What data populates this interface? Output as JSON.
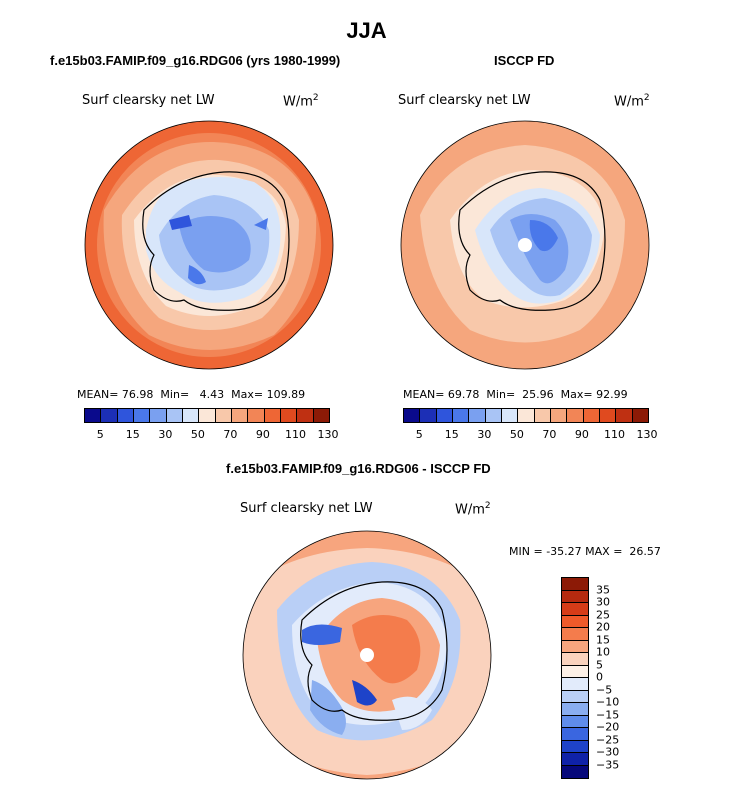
{
  "title": "JJA",
  "panels": [
    {
      "title": "f.e15b03.FAMIP.f09_g16.RDG06 (yrs 1980-1999)",
      "variable": "Surf clearsky net LW",
      "units": "W/m",
      "units_sup": "2",
      "mean_label": "MEAN=",
      "mean": "76.98",
      "min_label": "Min=",
      "min": "4.43",
      "max_label": "Max=",
      "max": "109.89",
      "cbar_ticks": [
        "5",
        "15",
        "30",
        "50",
        "70",
        "90",
        "110",
        "130"
      ]
    },
    {
      "title": "ISCCP FD",
      "variable": "Surf clearsky net LW",
      "units": "W/m",
      "units_sup": "2",
      "mean_label": "MEAN=",
      "mean": "69.78",
      "min_label": "Min=",
      "min": "25.96",
      "max_label": "Max=",
      "max": "92.99",
      "cbar_ticks": [
        "5",
        "15",
        "30",
        "50",
        "70",
        "90",
        "110",
        "130"
      ]
    },
    {
      "title": "f.e15b03.FAMIP.f09_g16.RDG06 - ISCCP FD",
      "variable": "Surf clearsky net LW",
      "units": "W/m",
      "units_sup": "2",
      "min_label": "MIN =",
      "min": "-35.27",
      "max_label": "MAX =",
      "max": "26.57",
      "cbar_ticks": [
        "35",
        "30",
        "25",
        "20",
        "15",
        "10",
        "5",
        "0",
        "−5",
        "−10",
        "−15",
        "−20",
        "−25",
        "−30",
        "−35"
      ]
    }
  ],
  "colors": {
    "abs_scale": [
      "#0a0a8c",
      "#1c2fb6",
      "#2f55dc",
      "#4a78ea",
      "#7aa0f0",
      "#a9c4f5",
      "#d8e6fa",
      "#fbe7d8",
      "#f8c8aa",
      "#f5a67d",
      "#f28556",
      "#ee6635",
      "#e04a1f",
      "#bf3012",
      "#8c1a06"
    ],
    "diff_scale": [
      "#8c1a06",
      "#b52a0f",
      "#d63c18",
      "#ef5a2a",
      "#f47c4c",
      "#f7a57e",
      "#fad2bd",
      "#fdf0e6",
      "#e2ebfb",
      "#b9cff6",
      "#8aaef0",
      "#5f8cea",
      "#3a66e0",
      "#1e43c9",
      "#0f22a8",
      "#06087a"
    ],
    "ocean_model": "#f0703f",
    "ocean_obs": "#f5a57c",
    "land_blue": "#a6c2f4",
    "coast": "#000000"
  }
}
